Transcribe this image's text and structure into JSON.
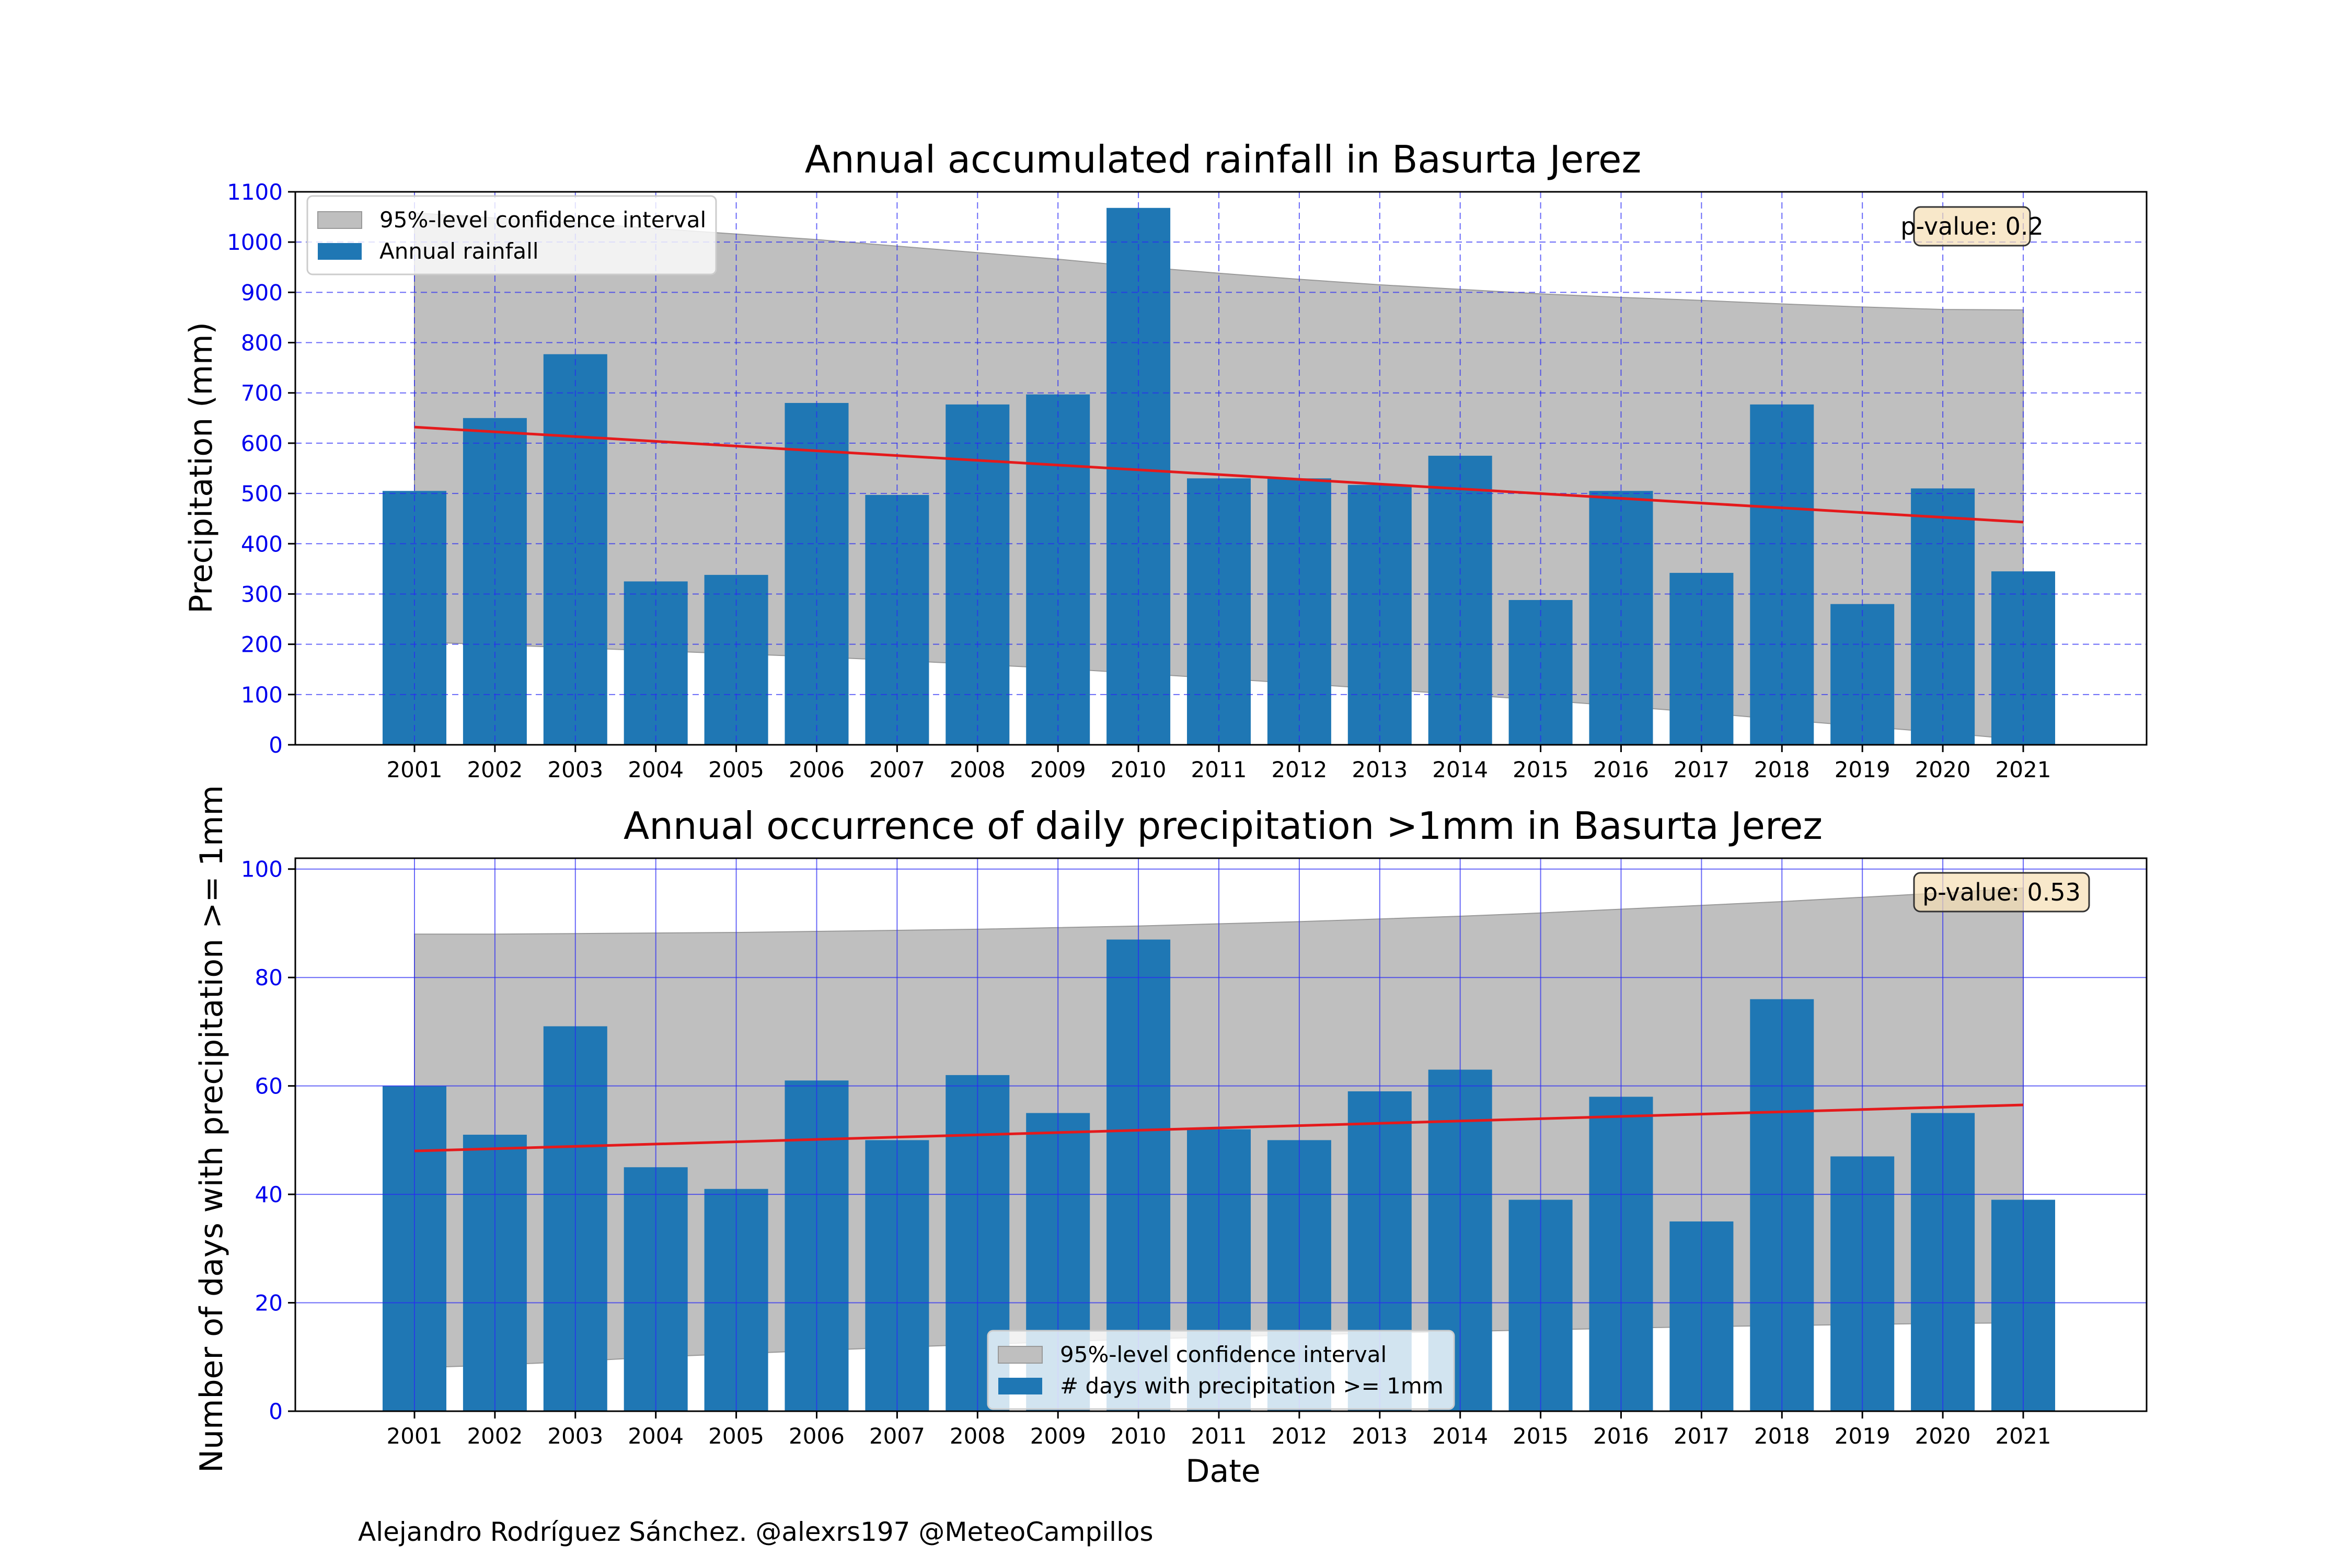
{
  "chart_data": [
    {
      "type": "bar",
      "title": "Annual accumulated rainfall in Basurta Jerez",
      "xlabel": "",
      "ylabel": "Precipitation (mm)",
      "categories": [
        "2001",
        "2002",
        "2003",
        "2004",
        "2005",
        "2006",
        "2007",
        "2008",
        "2009",
        "2010",
        "2011",
        "2012",
        "2013",
        "2014",
        "2015",
        "2016",
        "2017",
        "2018",
        "2019",
        "2020",
        "2021"
      ],
      "yticks": [
        0,
        100,
        200,
        300,
        400,
        500,
        600,
        700,
        800,
        900,
        1000,
        1100
      ],
      "ylim": [
        0,
        1100
      ],
      "grid": true,
      "grid_style": "dashed",
      "legend_position": "upper left",
      "series": [
        {
          "name": "Annual rainfall",
          "color": "#1f77b4",
          "values": [
            505,
            650,
            777,
            325,
            338,
            680,
            497,
            677,
            697,
            1068,
            530,
            530,
            517,
            575,
            288,
            505,
            342,
            677,
            280,
            510,
            345
          ]
        }
      ],
      "confidence_band": {
        "name": "95%-level confidence interval",
        "color": "#bfbfbf",
        "lower": [
          205,
          199,
          193,
          187,
          181,
          175,
          168,
          160,
          152,
          142,
          132,
          122,
          111,
          100,
          89,
          77,
          64,
          50,
          37,
          24,
          10
        ],
        "upper": [
          1058,
          1048,
          1038,
          1027,
          1016,
          1005,
          992,
          979,
          966,
          951,
          938,
          926,
          915,
          906,
          897,
          890,
          884,
          877,
          871,
          866,
          865
        ]
      },
      "trend": {
        "color": "#e41a1c",
        "start": 632,
        "end": 443
      },
      "annotation": "p-value: 0.2"
    },
    {
      "type": "bar",
      "title": "Annual occurrence of daily precipitation >1mm in Basurta Jerez",
      "xlabel": "Date",
      "ylabel": "Number of days with precipitation >= 1mm",
      "categories": [
        "2001",
        "2002",
        "2003",
        "2004",
        "2005",
        "2006",
        "2007",
        "2008",
        "2009",
        "2010",
        "2011",
        "2012",
        "2013",
        "2014",
        "2015",
        "2016",
        "2017",
        "2018",
        "2019",
        "2020",
        "2021"
      ],
      "yticks": [
        0,
        20,
        40,
        60,
        80,
        100
      ],
      "ylim": [
        0,
        102
      ],
      "grid": true,
      "grid_style": "solid",
      "legend_position": "lower center",
      "series": [
        {
          "name": "# days with precipitation >= 1mm",
          "color": "#1f77b4",
          "values": [
            60,
            51,
            71,
            45,
            41,
            61,
            50,
            62,
            55,
            87,
            52,
            50,
            59,
            63,
            39,
            58,
            35,
            76,
            47,
            55,
            39
          ]
        }
      ],
      "confidence_band": {
        "name": "95%-level confidence interval",
        "color": "#bfbfbf",
        "lower": [
          8,
          8.5,
          9.2,
          10,
          10.6,
          11.2,
          11.8,
          12.3,
          12.8,
          13.3,
          13.7,
          14.1,
          14.4,
          14.7,
          15,
          15.3,
          15.6,
          15.8,
          16,
          16.2,
          16.3
        ],
        "upper": [
          88,
          88,
          88.1,
          88.2,
          88.3,
          88.5,
          88.7,
          88.9,
          89.2,
          89.5,
          89.9,
          90.3,
          90.8,
          91.3,
          91.9,
          92.6,
          93.3,
          94,
          94.8,
          95.6,
          96.5
        ]
      },
      "trend": {
        "color": "#e41a1c",
        "start": 48,
        "end": 56.5
      },
      "annotation": "p-value: 0.53"
    }
  ],
  "footer": "Alejandro Rodríguez Sánchez. @alexrs197 @MeteoCampillos"
}
